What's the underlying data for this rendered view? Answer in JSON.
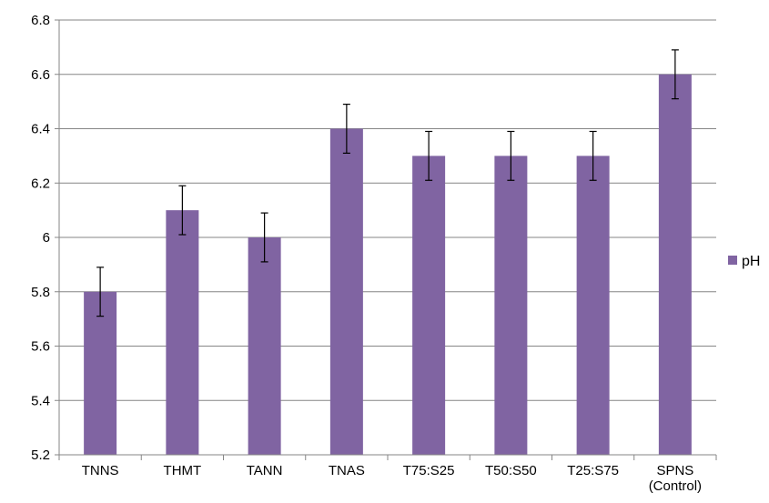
{
  "chart_data": {
    "type": "bar",
    "categories": [
      "TNNS",
      "THMT",
      "TANN",
      "TNAS",
      "T75:S25",
      "T50:S50",
      "T25:S75",
      "SPNS\n(Control)"
    ],
    "series": [
      {
        "name": "pH",
        "values": [
          5.8,
          6.1,
          6.0,
          6.4,
          6.3,
          6.3,
          6.3,
          6.6
        ],
        "error": [
          0.09,
          0.09,
          0.09,
          0.09,
          0.09,
          0.09,
          0.09,
          0.09
        ]
      }
    ],
    "ylim": [
      5.2,
      6.8
    ],
    "yticks": [
      "5.2",
      "5.4",
      "5.6",
      "5.8",
      "6",
      "6.2",
      "6.4",
      "6.6",
      "6.8"
    ],
    "grid": true,
    "legend_position": "right",
    "bar_color": "#8064A2",
    "grid_color": "#868686",
    "error_bar_color": "#000000"
  }
}
